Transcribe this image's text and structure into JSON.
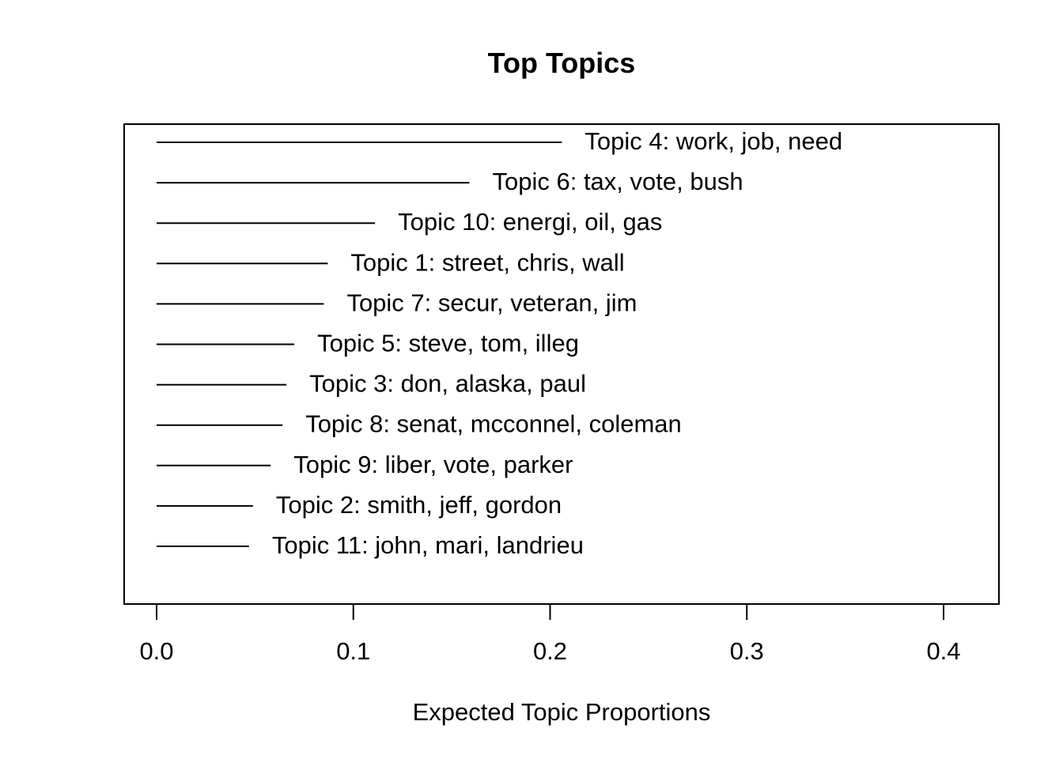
{
  "chart_data": {
    "type": "bar",
    "orientation": "horizontal",
    "title": "Top Topics",
    "xlabel": "Expected Topic Proportions",
    "ylabel": "",
    "xlim": [
      0,
      0.4
    ],
    "xticks": [
      0.0,
      0.1,
      0.2,
      0.3,
      0.4
    ],
    "xtick_labels": [
      "0.0",
      "0.1",
      "0.2",
      "0.3",
      "0.4"
    ],
    "grid": false,
    "legend": "none",
    "line_color": "#000000",
    "categories": [
      "Topic 4: work, job, need",
      "Topic 6: tax, vote, bush",
      "Topic 10: energi, oil, gas",
      "Topic 1: street, chris, wall",
      "Topic 7: secur, veteran, jim",
      "Topic 5: steve, tom, illeg",
      "Topic 3: don, alaska, paul",
      "Topic 8: senat, mcconnel, coleman",
      "Topic 9: liber, vote, parker",
      "Topic 2: smith, jeff, gordon",
      "Topic 11: john, mari, landrieu"
    ],
    "values": [
      0.206,
      0.159,
      0.111,
      0.087,
      0.085,
      0.07,
      0.066,
      0.064,
      0.058,
      0.049,
      0.047
    ]
  }
}
